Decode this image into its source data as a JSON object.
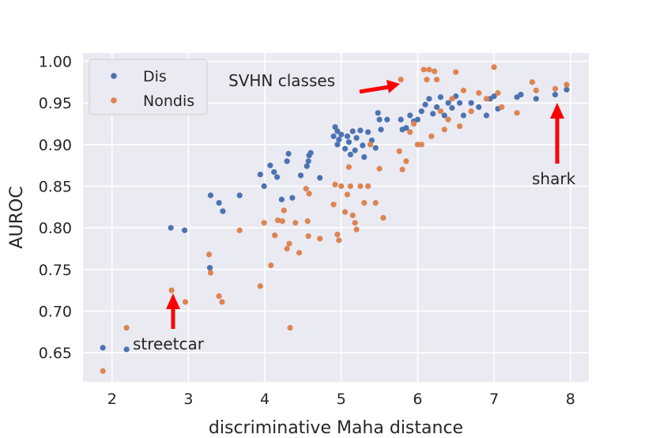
{
  "chart_data": {
    "type": "scatter",
    "title": "",
    "xlabel": "discriminative Maha distance",
    "ylabel": "AUROC",
    "xlim": [
      1.62,
      8.24
    ],
    "ylim": [
      0.615,
      1.01
    ],
    "xticks": [
      2,
      3,
      4,
      5,
      6,
      7,
      8
    ],
    "xtick_labels": [
      "2",
      "3",
      "4",
      "5",
      "6",
      "7",
      "8"
    ],
    "yticks": [
      0.65,
      0.7,
      0.75,
      0.8,
      0.85,
      0.9,
      0.95,
      1.0
    ],
    "ytick_labels": [
      "0.65",
      "0.70",
      "0.75",
      "0.80",
      "0.85",
      "0.90",
      "0.95",
      "1.00"
    ],
    "grid": true,
    "legend_position": "top-left",
    "series": [
      {
        "name": "Dis",
        "color": "#4c72b0",
        "points": [
          [
            1.88,
            0.656
          ],
          [
            2.19,
            0.654
          ],
          [
            2.77,
            0.8
          ],
          [
            2.95,
            0.797
          ],
          [
            3.29,
            0.839
          ],
          [
            3.28,
            0.752
          ],
          [
            3.4,
            0.83
          ],
          [
            3.45,
            0.82
          ],
          [
            3.67,
            0.839
          ],
          [
            3.94,
            0.864
          ],
          [
            3.99,
            0.85
          ],
          [
            4.07,
            0.875
          ],
          [
            4.12,
            0.867
          ],
          [
            4.16,
            0.861
          ],
          [
            4.22,
            0.834
          ],
          [
            4.29,
            0.88
          ],
          [
            4.31,
            0.889
          ],
          [
            4.36,
            0.836
          ],
          [
            4.47,
            0.863
          ],
          [
            4.55,
            0.874
          ],
          [
            4.57,
            0.88
          ],
          [
            4.58,
            0.887
          ],
          [
            4.6,
            0.89
          ],
          [
            4.72,
            0.86
          ],
          [
            4.9,
            0.91
          ],
          [
            4.92,
            0.921
          ],
          [
            4.95,
            0.916
          ],
          [
            4.97,
            0.906
          ],
          [
            5.0,
            0.912
          ],
          [
            4.95,
            0.9
          ],
          [
            5.05,
            0.895
          ],
          [
            5.08,
            0.91
          ],
          [
            5.1,
            0.903
          ],
          [
            5.12,
            0.888
          ],
          [
            5.15,
            0.916
          ],
          [
            5.18,
            0.893
          ],
          [
            5.2,
            0.908
          ],
          [
            5.25,
            0.917
          ],
          [
            5.28,
            0.899
          ],
          [
            5.3,
            0.885
          ],
          [
            5.35,
            0.915
          ],
          [
            5.4,
            0.905
          ],
          [
            5.45,
            0.896
          ],
          [
            5.48,
            0.938
          ],
          [
            5.5,
            0.93
          ],
          [
            5.52,
            0.918
          ],
          [
            5.6,
            0.93
          ],
          [
            5.78,
            0.93
          ],
          [
            5.8,
            0.918
          ],
          [
            5.85,
            0.92
          ],
          [
            5.9,
            0.935
          ],
          [
            5.95,
            0.928
          ],
          [
            6.0,
            0.93
          ],
          [
            6.05,
            0.94
          ],
          [
            6.1,
            0.948
          ],
          [
            6.15,
            0.955
          ],
          [
            6.2,
            0.937
          ],
          [
            6.25,
            0.945
          ],
          [
            6.3,
            0.957
          ],
          [
            6.35,
            0.935
          ],
          [
            6.4,
            0.95
          ],
          [
            6.45,
            0.944
          ],
          [
            6.5,
            0.958
          ],
          [
            6.55,
            0.95
          ],
          [
            6.6,
            0.935
          ],
          [
            6.7,
            0.95
          ],
          [
            6.8,
            0.945
          ],
          [
            6.9,
            0.935
          ],
          [
            6.95,
            0.955
          ],
          [
            7.0,
            0.958
          ],
          [
            7.05,
            0.943
          ],
          [
            7.3,
            0.957
          ],
          [
            7.35,
            0.96
          ],
          [
            7.55,
            0.955
          ],
          [
            7.8,
            0.96
          ],
          [
            7.95,
            0.966
          ]
        ]
      },
      {
        "name": "Nondis",
        "color": "#dd8452",
        "points": [
          [
            1.88,
            0.628
          ],
          [
            2.19,
            0.68
          ],
          [
            2.78,
            0.725
          ],
          [
            2.96,
            0.711
          ],
          [
            3.27,
            0.768
          ],
          [
            3.29,
            0.746
          ],
          [
            3.4,
            0.718
          ],
          [
            3.44,
            0.711
          ],
          [
            3.67,
            0.797
          ],
          [
            3.94,
            0.73
          ],
          [
            3.99,
            0.806
          ],
          [
            4.08,
            0.755
          ],
          [
            4.13,
            0.791
          ],
          [
            4.17,
            0.809
          ],
          [
            4.23,
            0.808
          ],
          [
            4.25,
            0.821
          ],
          [
            4.29,
            0.775
          ],
          [
            4.32,
            0.781
          ],
          [
            4.33,
            0.68
          ],
          [
            4.4,
            0.806
          ],
          [
            4.45,
            0.77
          ],
          [
            4.54,
            0.847
          ],
          [
            4.56,
            0.808
          ],
          [
            4.57,
            0.79
          ],
          [
            4.58,
            0.841
          ],
          [
            4.72,
            0.787
          ],
          [
            4.9,
            0.828
          ],
          [
            4.92,
            0.852
          ],
          [
            4.95,
            0.792
          ],
          [
            4.97,
            0.785
          ],
          [
            5.0,
            0.85
          ],
          [
            5.05,
            0.819
          ],
          [
            5.08,
            0.84
          ],
          [
            5.1,
            0.873
          ],
          [
            5.12,
            0.85
          ],
          [
            5.15,
            0.815
          ],
          [
            5.18,
            0.806
          ],
          [
            5.2,
            0.798
          ],
          [
            5.25,
            0.85
          ],
          [
            5.3,
            0.83
          ],
          [
            5.35,
            0.85
          ],
          [
            5.38,
            0.9
          ],
          [
            5.45,
            0.83
          ],
          [
            5.5,
            0.871
          ],
          [
            5.55,
            0.812
          ],
          [
            5.78,
            0.978
          ],
          [
            5.76,
            0.892
          ],
          [
            5.8,
            0.87
          ],
          [
            5.85,
            0.88
          ],
          [
            5.9,
            0.915
          ],
          [
            5.95,
            0.925
          ],
          [
            6.0,
            0.9
          ],
          [
            6.05,
            0.9
          ],
          [
            6.08,
            0.99
          ],
          [
            6.12,
            0.978
          ],
          [
            6.15,
            0.99
          ],
          [
            6.18,
            0.91
          ],
          [
            6.22,
            0.988
          ],
          [
            6.25,
            0.978
          ],
          [
            6.3,
            0.94
          ],
          [
            6.35,
            0.918
          ],
          [
            6.4,
            0.93
          ],
          [
            6.45,
            0.955
          ],
          [
            6.5,
            0.987
          ],
          [
            6.55,
            0.922
          ],
          [
            6.6,
            0.965
          ],
          [
            6.7,
            0.94
          ],
          [
            6.8,
            0.962
          ],
          [
            6.9,
            0.955
          ],
          [
            7.0,
            0.993
          ],
          [
            7.05,
            0.962
          ],
          [
            7.1,
            0.945
          ],
          [
            7.3,
            0.938
          ],
          [
            7.5,
            0.975
          ],
          [
            7.55,
            0.965
          ],
          [
            7.8,
            0.967
          ],
          [
            7.95,
            0.972
          ]
        ]
      }
    ],
    "annotations": [
      {
        "text": "SVHN classes",
        "target": [
          5.78,
          0.978
        ]
      },
      {
        "text": "shark",
        "target": [
          7.78,
          0.955
        ]
      },
      {
        "text": "streetcar",
        "target": [
          2.78,
          0.725
        ]
      }
    ]
  }
}
